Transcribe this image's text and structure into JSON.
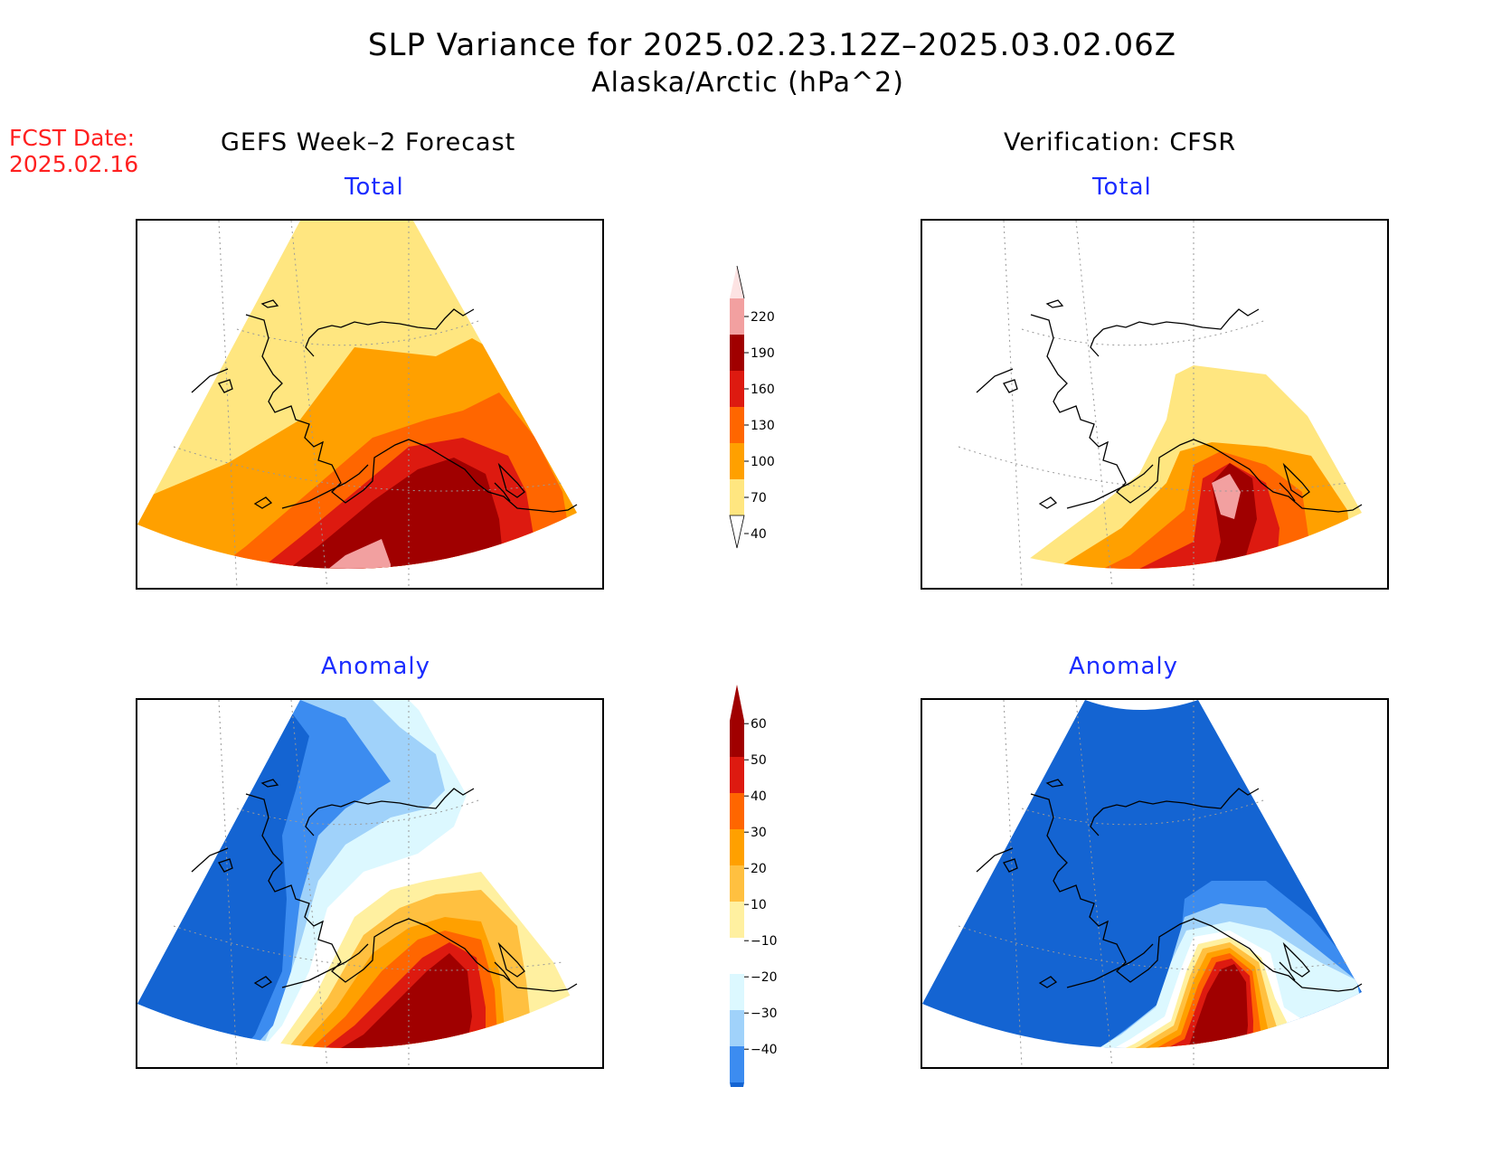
{
  "header": {
    "title": "SLP Variance for 2025.02.23.12Z–2025.03.02.06Z",
    "subtitle": "Alaska/Arctic (hPa^2)",
    "fcst_label": "FCST Date:",
    "fcst_date": "2025.02.16"
  },
  "columns": {
    "left": "GEFS Week–2 Forecast",
    "right": "Verification: CFSR"
  },
  "panels": {
    "top_left": "Total",
    "top_right": "Total",
    "bottom_left": "Anomaly",
    "bottom_right": "Anomaly"
  },
  "colorbars": {
    "total": {
      "labels": [
        "220",
        "190",
        "160",
        "130",
        "100",
        "70",
        "40"
      ],
      "colors": [
        "#fde3e3",
        "#f2a0a0",
        "#a00000",
        "#dd1a10",
        "#ff6600",
        "#ffa000",
        "#ffe680"
      ]
    },
    "anomaly": {
      "labels": [
        "60",
        "50",
        "40",
        "30",
        "20",
        "10",
        "−10",
        "−20",
        "−30",
        "−40"
      ],
      "colors": [
        "#a00000",
        "#dd1a10",
        "#ff6600",
        "#ffa000",
        "#ffc040",
        "#fff0a0",
        "#ffffff",
        "#dcf8ff",
        "#a0d2fa",
        "#3c8cf0",
        "#1464d2"
      ]
    }
  }
}
